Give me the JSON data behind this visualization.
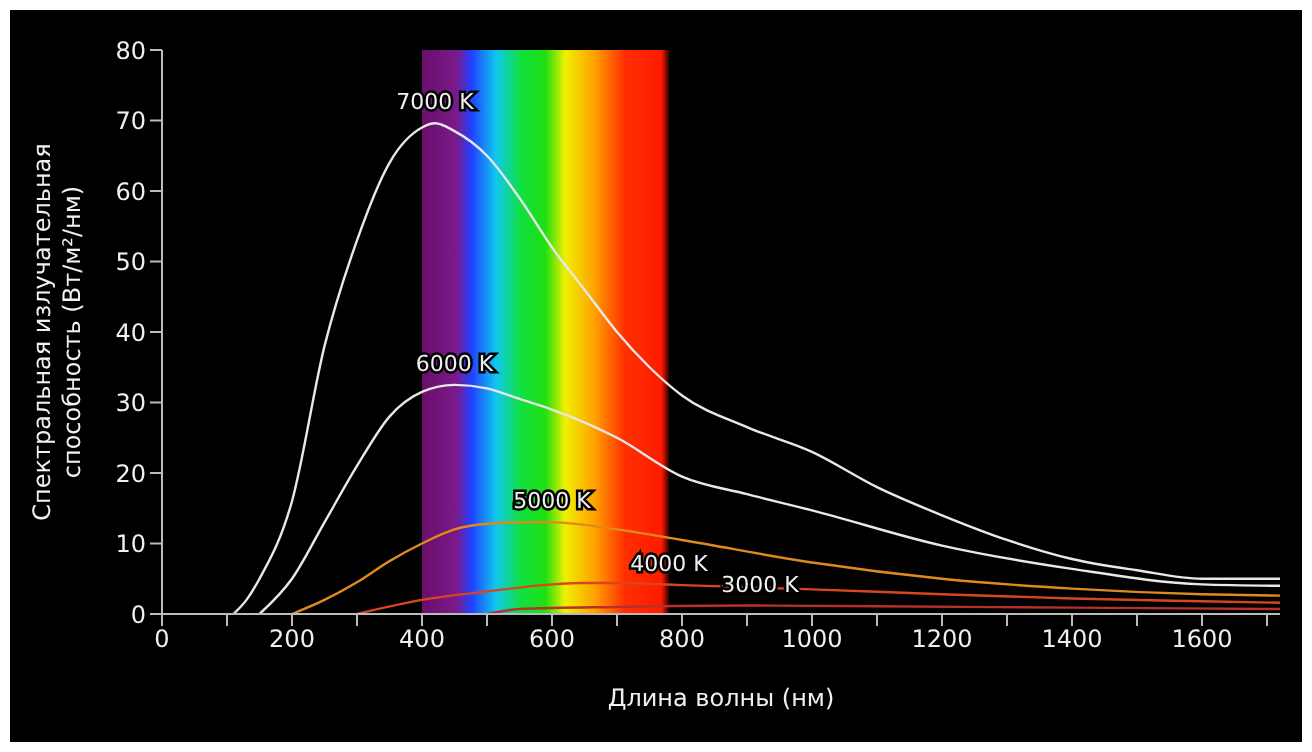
{
  "chart_data": {
    "type": "line",
    "xlabel": "Длина волны (нм)",
    "ylabel": "Спектральная излучательная способность (Вт/м²/нм)",
    "xlim": [
      0,
      1720
    ],
    "xticks": [
      0,
      {
        "value": 100,
        "label": null
      },
      200,
      {
        "value": 300,
        "label": null
      },
      400,
      {
        "value": 500,
        "label": null
      },
      600,
      {
        "value": 700,
        "label": null
      },
      800,
      {
        "value": 900,
        "label": null
      },
      1000,
      {
        "value": 1100,
        "label": null
      },
      1200,
      {
        "value": 1300,
        "label": null
      },
      1400,
      {
        "value": 1500,
        "label": null
      },
      1600,
      {
        "value": 1700,
        "label": null
      }
    ],
    "ylim": [
      0,
      80
    ],
    "yticks": [
      0,
      10,
      20,
      30,
      40,
      50,
      60,
      70,
      80
    ],
    "marker": "none",
    "line_style": "solid",
    "bands": [
      {
        "axis": "x",
        "from": 400,
        "to": 780
      }
    ],
    "series": [
      {
        "color": "#e8e8e8",
        "x": [
          110,
          130,
          150,
          200,
          250,
          300,
          350,
          400,
          420,
          450,
          500,
          550,
          600,
          650,
          700,
          750,
          800,
          900,
          1000,
          1100,
          1200,
          1300,
          1400,
          1500,
          1600,
          1720
        ],
        "values": [
          0,
          2,
          5,
          16,
          38,
          53,
          64,
          69,
          69.6,
          68.5,
          65,
          59,
          52,
          46,
          40,
          35,
          31,
          26.5,
          23,
          18,
          14,
          10.5,
          7.8,
          6.2,
          5,
          5
        ]
      },
      {
        "color": "#e8e8e8",
        "x": [
          150,
          200,
          250,
          300,
          350,
          400,
          450,
          500,
          550,
          600,
          700,
          800,
          900,
          1000,
          1200,
          1400,
          1600,
          1720
        ],
        "values": [
          0,
          5,
          13,
          21,
          28,
          31.5,
          32.5,
          32,
          30.5,
          29,
          25,
          19.5,
          17,
          14.7,
          9.7,
          6.4,
          4.2,
          4
        ]
      },
      {
        "color": "#e08a1e",
        "x": [
          200,
          250,
          300,
          350,
          400,
          450,
          500,
          550,
          600,
          700,
          800,
          1000,
          1200,
          1400,
          1600,
          1720
        ],
        "values": [
          0,
          2,
          4.5,
          7.5,
          10,
          12,
          12.8,
          13,
          13,
          12,
          10.5,
          7.3,
          5,
          3.6,
          2.8,
          2.6
        ]
      },
      {
        "color": "#d9461e",
        "x": [
          300,
          400,
          500,
          600,
          650,
          700,
          800,
          1000,
          1200,
          1400,
          1600,
          1720
        ],
        "values": [
          0,
          2,
          3.2,
          4.2,
          4.4,
          4.4,
          4.1,
          3.5,
          2.8,
          2.2,
          1.8,
          1.6
        ]
      },
      {
        "color": "#b8302a",
        "x": [
          500,
          550,
          700,
          900,
          1100,
          1400,
          1720
        ],
        "values": [
          0,
          0.7,
          1,
          1.2,
          1.1,
          0.9,
          0.7
        ]
      }
    ],
    "annotations": [
      {
        "text": "7000 K",
        "x": 420,
        "y": 69.6
      },
      {
        "text": "6000 K",
        "x": 450,
        "y": 32.5
      },
      {
        "text": "5000 K",
        "x": 600,
        "y": 13
      },
      {
        "text": "4000 K",
        "x": 780,
        "y": 4.1
      },
      {
        "text": "3000 K",
        "x": 920,
        "y": 1.2
      }
    ]
  }
}
